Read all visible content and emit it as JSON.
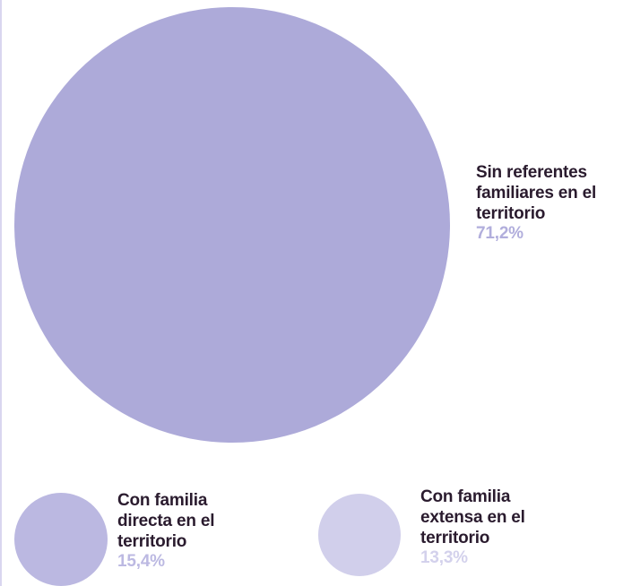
{
  "chart_data": {
    "type": "bubble",
    "title": "",
    "items": [
      {
        "label": "Sin referentes familiares en el territorio",
        "value": 71.2,
        "value_label": "71,2%",
        "color": "#adaad9",
        "value_color": "#b1aedc"
      },
      {
        "label": "Con familia directa en el territorio",
        "value": 15.4,
        "value_label": "15,4%",
        "color": "#bbb8e1",
        "value_color": "#bcb9e2"
      },
      {
        "label": "Con familia extensa en el territorio",
        "value": 13.3,
        "value_label": "13,3%",
        "color": "#d1cfeb",
        "value_color": "#d3d1ec"
      }
    ]
  }
}
